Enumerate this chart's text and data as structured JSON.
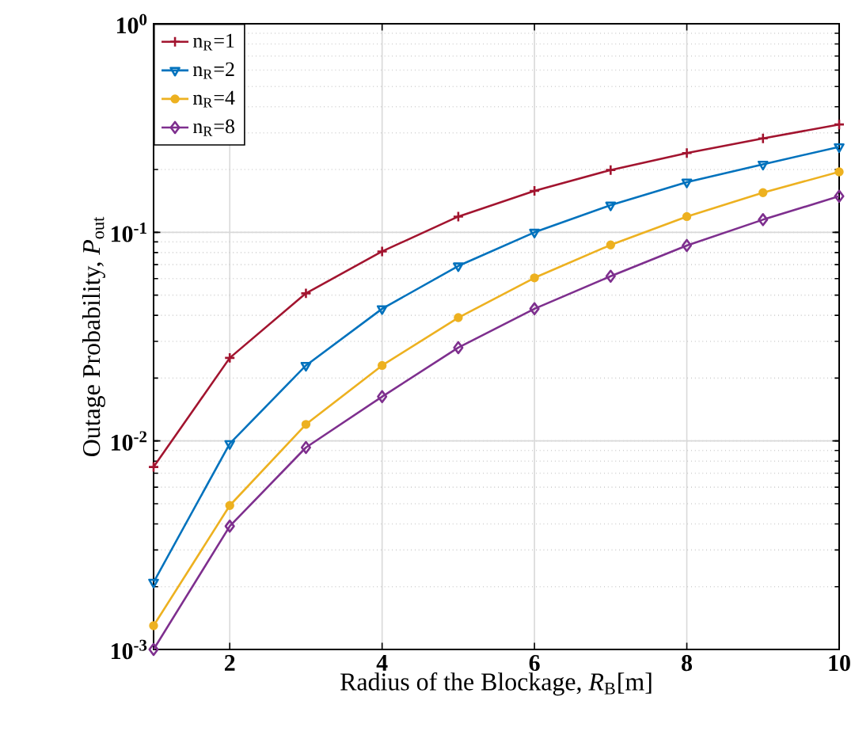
{
  "chart_data": {
    "type": "line",
    "xlabel": "Radius of the Blockage, *R*$_{B}$[m]",
    "ylabel": "Outage Probability, *P*$_{out}$",
    "x": [
      1,
      2,
      3,
      4,
      5,
      6,
      7,
      8,
      9,
      10
    ],
    "series": [
      {
        "name": "n$_{R}$=1",
        "color": "#a2142f",
        "marker": "cross",
        "values": [
          0.0075,
          0.025,
          0.051,
          0.081,
          0.119,
          0.158,
          0.199,
          0.24,
          0.282,
          0.329
        ]
      },
      {
        "name": "n$_{R}$=2",
        "color": "#0072bd",
        "marker": "triangle",
        "values": [
          0.0021,
          0.0097,
          0.023,
          0.043,
          0.069,
          0.1,
          0.135,
          0.174,
          0.212,
          0.257
        ]
      },
      {
        "name": "n$_{R}$=4",
        "color": "#edb120",
        "marker": "circle",
        "values": [
          0.0013,
          0.0049,
          0.012,
          0.023,
          0.039,
          0.0605,
          0.087,
          0.119,
          0.155,
          0.195
        ]
      },
      {
        "name": "n$_{R}$=8",
        "color": "#7e2f8e",
        "marker": "diamond",
        "values": [
          0.001,
          0.0039,
          0.0093,
          0.0163,
          0.028,
          0.043,
          0.0616,
          0.0865,
          0.115,
          0.149
        ]
      }
    ],
    "xlim": [
      1,
      10
    ],
    "xticks": [
      2,
      4,
      6,
      8,
      10
    ],
    "ylim": [
      0.001,
      1
    ],
    "yticks": [
      {
        "value": 0.001,
        "label": "10$^{-3}$"
      },
      {
        "value": 0.01,
        "label": "10$^{-2}$"
      },
      {
        "value": 0.1,
        "label": "10$^{-1}$"
      },
      {
        "value": 1,
        "label": "10$^{0}$"
      }
    ],
    "log": "y",
    "grid": true,
    "legend": "top left",
    "line_style": "solid"
  }
}
